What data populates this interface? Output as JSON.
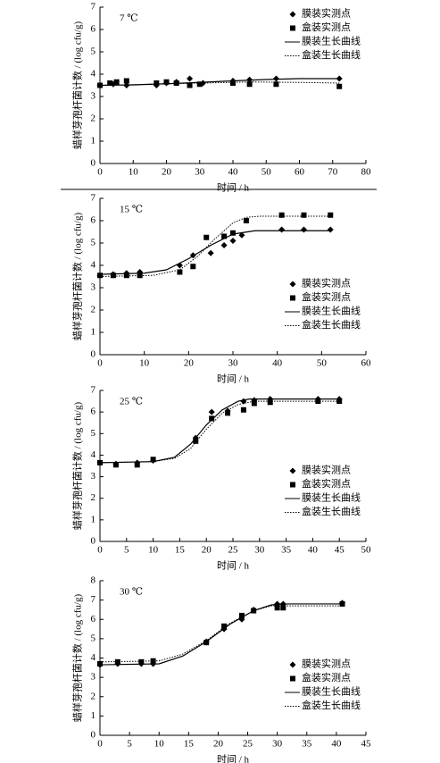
{
  "chart_data": [
    {
      "type": "scatter",
      "annotation": "7 ℃",
      "xlabel": "时间 / h",
      "ylabel": "蜡样芽孢杆菌计数 / (log cfu/g)",
      "xlim": [
        0,
        80
      ],
      "xticks": [
        0,
        10,
        20,
        30,
        40,
        50,
        60,
        70,
        80
      ],
      "ylim": [
        0,
        7
      ],
      "yticks": [
        0,
        1,
        2,
        3,
        4,
        5,
        6,
        7
      ],
      "legend": "upper right",
      "series": [
        {
          "name": "膜装实测点",
          "color": "#000000",
          "marker": "diamond",
          "x": [
            0,
            4,
            8,
            17,
            20,
            23,
            27,
            31,
            40,
            45,
            53,
            72
          ],
          "values": [
            3.5,
            3.55,
            3.5,
            3.5,
            3.6,
            3.65,
            3.8,
            3.6,
            3.7,
            3.75,
            3.8,
            3.8
          ]
        },
        {
          "name": "盒装实测点",
          "color": "#000000",
          "marker": "square",
          "x": [
            0,
            3,
            5,
            8,
            17,
            20,
            23,
            27,
            30,
            40,
            45,
            53,
            72
          ],
          "values": [
            3.5,
            3.6,
            3.65,
            3.7,
            3.6,
            3.65,
            3.6,
            3.5,
            3.55,
            3.6,
            3.55,
            3.55,
            3.45
          ]
        },
        {
          "name": "膜装生长曲线",
          "color": "#000000",
          "line": "solid",
          "x": [
            0,
            10,
            20,
            30,
            40,
            50,
            60,
            72
          ],
          "values": [
            3.5,
            3.52,
            3.57,
            3.63,
            3.7,
            3.76,
            3.8,
            3.8
          ]
        },
        {
          "name": "盒装生长曲线",
          "color": "#000000",
          "line": "dotted",
          "x": [
            0,
            10,
            20,
            30,
            45,
            60,
            72
          ],
          "values": [
            3.5,
            3.53,
            3.57,
            3.6,
            3.65,
            3.63,
            3.6
          ]
        }
      ]
    },
    {
      "type": "scatter",
      "annotation": "15 ℃",
      "xlabel": "时间 / h",
      "ylabel": "蜡样芽孢杆菌计数 / (log cfu/g)",
      "xlim": [
        0,
        60
      ],
      "xticks": [
        0,
        10,
        20,
        30,
        40,
        50,
        60
      ],
      "ylim": [
        0,
        7
      ],
      "yticks": [
        0,
        1,
        2,
        3,
        4,
        5,
        6,
        7
      ],
      "legend": "lower right",
      "series": [
        {
          "name": "膜装实测点",
          "color": "#000000",
          "marker": "diamond",
          "x": [
            0,
            3,
            6,
            9,
            18,
            21,
            25,
            28,
            30,
            32,
            41,
            46,
            52
          ],
          "values": [
            3.55,
            3.6,
            3.65,
            3.7,
            4.0,
            4.45,
            4.55,
            4.9,
            5.1,
            5.35,
            5.6,
            5.6,
            5.6
          ]
        },
        {
          "name": "盒装实测点",
          "color": "#000000",
          "marker": "square",
          "x": [
            0,
            3,
            6,
            9,
            18,
            21,
            24,
            28,
            30,
            33,
            41,
            46,
            52
          ],
          "values": [
            3.55,
            3.55,
            3.55,
            3.55,
            3.7,
            3.95,
            5.25,
            5.3,
            5.45,
            6.0,
            6.25,
            6.25,
            6.25
          ]
        },
        {
          "name": "膜装生长曲线",
          "color": "#000000",
          "line": "solid",
          "x": [
            0,
            10,
            15,
            20,
            25,
            30,
            35,
            52
          ],
          "values": [
            3.6,
            3.65,
            3.8,
            4.3,
            4.9,
            5.4,
            5.55,
            5.55
          ]
        },
        {
          "name": "盒装生长曲线",
          "color": "#000000",
          "line": "dotted",
          "x": [
            0,
            12,
            18,
            22,
            26,
            30,
            33,
            36,
            52
          ],
          "values": [
            3.5,
            3.55,
            3.8,
            4.4,
            5.2,
            5.9,
            6.15,
            6.2,
            6.2
          ]
        }
      ]
    },
    {
      "type": "scatter",
      "annotation": "25 ℃",
      "xlabel": "时间 / h",
      "ylabel": "蜡样芽孢杆菌计数 / (log cfu/g)",
      "xlim": [
        0,
        50
      ],
      "xticks": [
        0,
        5,
        10,
        15,
        20,
        25,
        30,
        35,
        40,
        45,
        50
      ],
      "ylim": [
        0,
        7
      ],
      "yticks": [
        0,
        1,
        2,
        3,
        4,
        5,
        6,
        7
      ],
      "legend": "lower right",
      "series": [
        {
          "name": "膜装实测点",
          "color": "#000000",
          "marker": "diamond",
          "x": [
            0,
            3,
            7,
            10,
            18,
            21,
            24,
            27,
            29,
            32,
            41,
            45
          ],
          "values": [
            3.65,
            3.6,
            3.65,
            3.75,
            4.8,
            6.0,
            6.05,
            6.5,
            6.55,
            6.6,
            6.6,
            6.6
          ]
        },
        {
          "name": "盒装实测点",
          "color": "#000000",
          "marker": "square",
          "x": [
            0,
            3,
            7,
            10,
            18,
            21,
            24,
            27,
            29,
            32,
            41,
            45
          ],
          "values": [
            3.65,
            3.55,
            3.55,
            3.8,
            4.65,
            5.7,
            5.95,
            6.1,
            6.4,
            6.45,
            6.5,
            6.5
          ]
        },
        {
          "name": "膜装生长曲线",
          "color": "#000000",
          "line": "solid",
          "x": [
            0,
            10,
            14,
            17,
            20,
            23,
            26,
            28,
            45
          ],
          "values": [
            3.65,
            3.7,
            3.9,
            4.5,
            5.4,
            6.1,
            6.5,
            6.6,
            6.6
          ]
        },
        {
          "name": "盒装生长曲线",
          "color": "#000000",
          "line": "dotted",
          "x": [
            0,
            10,
            14,
            17,
            20,
            23,
            26,
            29,
            45
          ],
          "values": [
            3.65,
            3.7,
            3.85,
            4.3,
            5.2,
            5.95,
            6.35,
            6.5,
            6.5
          ]
        }
      ]
    },
    {
      "type": "scatter",
      "annotation": "30 ℃",
      "xlabel": "时间 / h",
      "ylabel": "蜡样芽孢杆菌计数 / (log cfu/g)",
      "xlim": [
        0,
        45
      ],
      "xticks": [
        0,
        5,
        10,
        15,
        20,
        25,
        30,
        35,
        40,
        45
      ],
      "ylim": [
        0,
        8
      ],
      "yticks": [
        0,
        1,
        2,
        3,
        4,
        5,
        6,
        7,
        8
      ],
      "legend": "lower right",
      "series": [
        {
          "name": "膜装实测点",
          "color": "#000000",
          "marker": "diamond",
          "x": [
            0,
            3,
            7,
            9,
            18,
            21,
            24,
            26,
            30,
            31,
            41
          ],
          "values": [
            3.65,
            3.7,
            3.7,
            3.7,
            4.85,
            5.5,
            6.0,
            6.5,
            6.8,
            6.8,
            6.85
          ]
        },
        {
          "name": "盒装实测点",
          "color": "#000000",
          "marker": "square",
          "x": [
            0,
            3,
            7,
            9,
            18,
            21,
            24,
            26,
            30,
            31,
            41
          ],
          "values": [
            3.7,
            3.8,
            3.8,
            3.85,
            4.8,
            5.65,
            6.2,
            6.45,
            6.6,
            6.6,
            6.8
          ]
        },
        {
          "name": "膜装生长曲线",
          "color": "#000000",
          "line": "solid",
          "x": [
            0,
            10,
            14,
            18,
            22,
            26,
            29,
            32,
            41
          ],
          "values": [
            3.65,
            3.7,
            4.1,
            4.85,
            5.75,
            6.45,
            6.75,
            6.8,
            6.8
          ]
        },
        {
          "name": "盒装生长曲线",
          "color": "#000000",
          "line": "dotted",
          "x": [
            0,
            10,
            14,
            18,
            22,
            26,
            29,
            41
          ],
          "values": [
            3.8,
            3.85,
            4.2,
            4.9,
            5.8,
            6.45,
            6.7,
            6.7
          ]
        }
      ]
    }
  ]
}
